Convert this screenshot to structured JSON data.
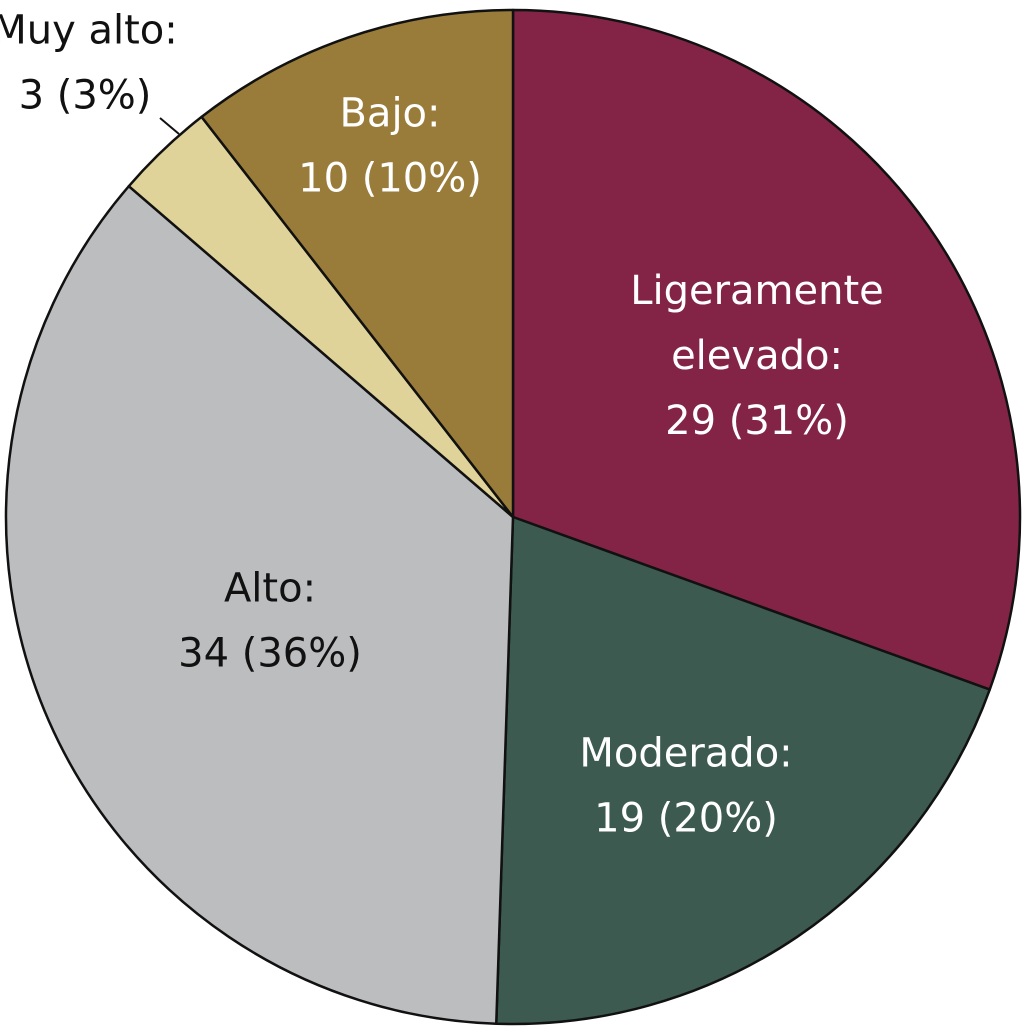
{
  "chart_data": {
    "type": "pie",
    "start_angle_deg": 0,
    "direction": "clockwise",
    "slices": [
      {
        "label": "Ligeramente elevado",
        "value": 29,
        "percent": 31,
        "color": "#832447",
        "text_lines": [
          "Ligeramente",
          "elevado:",
          "29 (31%)"
        ]
      },
      {
        "label": "Moderado",
        "value": 19,
        "percent": 20,
        "color": "#3c5a50",
        "text_lines": [
          "Moderado:",
          "19 (20%)"
        ]
      },
      {
        "label": "Alto",
        "value": 34,
        "percent": 36,
        "color": "#bcbdbf",
        "text_lines": [
          "Alto:",
          "34 (36%)"
        ]
      },
      {
        "label": "Muy alto",
        "value": 3,
        "percent": 3,
        "color": "#e0d39a",
        "text_lines": [
          "Muy alto:",
          "3 (3%)"
        ]
      },
      {
        "label": "Bajo",
        "value": 10,
        "percent": 10,
        "color": "#9a7c3a",
        "text_lines": [
          "Bajo:",
          "10 (10%)"
        ]
      }
    ]
  }
}
